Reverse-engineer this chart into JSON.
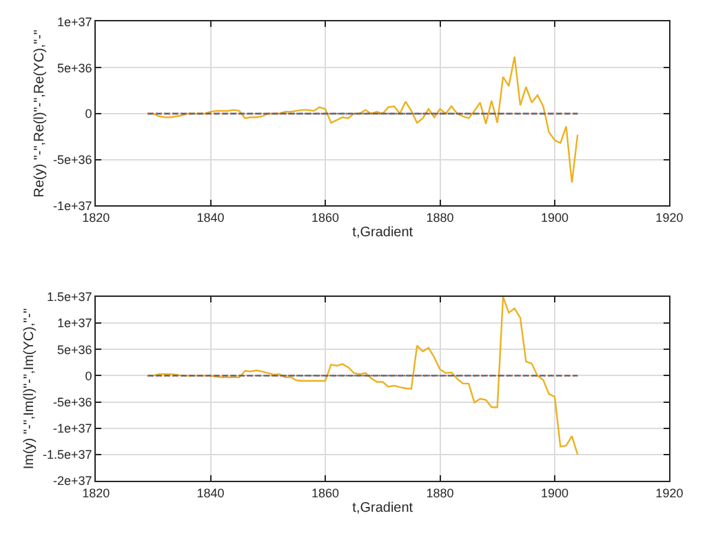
{
  "chart_data": [
    {
      "type": "line",
      "xlabel": "t,Gradient",
      "ylabel": "Re(y) \"-\",Re(l)\"-\",Re(YC),\"-\"",
      "xlim": [
        1820,
        1920
      ],
      "xticks": [
        1820,
        1840,
        1860,
        1880,
        1900,
        1920
      ],
      "ylim": [
        -1e+37,
        1e+37
      ],
      "yticks": [
        {
          "value": -1e+37,
          "label": "-1e+37"
        },
        {
          "value": -5e+36,
          "label": "-5e+36"
        },
        0,
        {
          "value": 5e+36,
          "label": "5e+36"
        },
        {
          "value": 1e+37,
          "label": "1e+37"
        }
      ],
      "grid": true,
      "x": [
        1829,
        1830,
        1831,
        1832,
        1833,
        1834,
        1835,
        1836,
        1837,
        1838,
        1839,
        1840,
        1841,
        1842,
        1843,
        1844,
        1845,
        1846,
        1847,
        1848,
        1849,
        1850,
        1851,
        1852,
        1853,
        1854,
        1855,
        1856,
        1857,
        1858,
        1859,
        1860,
        1861,
        1862,
        1863,
        1864,
        1865,
        1866,
        1867,
        1868,
        1869,
        1870,
        1871,
        1872,
        1873,
        1874,
        1875,
        1876,
        1877,
        1878,
        1879,
        1880,
        1881,
        1882,
        1883,
        1884,
        1885,
        1886,
        1887,
        1888,
        1889,
        1890,
        1891,
        1892,
        1893,
        1894,
        1895,
        1896,
        1897,
        1898,
        1899,
        1900,
        1901,
        1902,
        1903,
        1904
      ],
      "series": [
        {
          "color": "#edb120",
          "line_style": "solid",
          "values": [
            0,
            0,
            -3e+35,
            -4e+35,
            -4e+35,
            -3e+35,
            -2e+35,
            0,
            0,
            0,
            0,
            2e+35,
            3e+35,
            3e+35,
            3e+35,
            4e+35,
            3e+35,
            -5e+35,
            -4e+35,
            -4e+35,
            -3e+35,
            0,
            0,
            0,
            2e+35,
            2e+35,
            3e+35,
            4e+35,
            4e+35,
            3e+35,
            7e+35,
            5e+35,
            -1e+36,
            -7e+35,
            -4e+35,
            -5e+35,
            0,
            0,
            4e+35,
            0,
            2e+35,
            0,
            7e+35,
            8e+35,
            0,
            1.3e+36,
            3e+35,
            -1e+36,
            -5e+35,
            5e+35,
            -4e+35,
            5e+35,
            0,
            8e+35,
            0,
            -3e+35,
            -5e+35,
            3e+35,
            1.2e+36,
            -1.1e+36,
            1.4e+36,
            -1e+36,
            4e+36,
            3e+36,
            6.2e+36,
            9e+35,
            2.9e+36,
            1.2e+36,
            2e+36,
            8e+35,
            -2e+36,
            -2.9e+36,
            -3.2e+36,
            -1.4e+36,
            -7.5e+36,
            -2.3e+36
          ]
        },
        {
          "color": "#0072bd",
          "line_style": "dashed",
          "values": [
            0,
            0,
            0,
            0,
            0,
            0,
            0,
            0,
            0,
            0,
            0,
            0,
            0,
            0,
            0,
            0,
            0,
            0,
            0,
            0,
            0,
            0,
            0,
            0,
            0,
            0,
            0,
            0,
            0,
            0,
            0,
            0,
            0,
            0,
            0,
            0,
            0,
            0,
            0,
            0,
            0,
            0,
            0,
            0,
            0,
            0,
            0,
            0,
            0,
            0,
            0,
            0,
            0,
            0,
            0,
            0,
            0,
            0,
            0,
            0,
            0,
            0,
            0,
            0,
            0,
            0,
            0,
            0,
            0,
            0,
            0,
            0,
            0,
            0,
            0,
            0
          ]
        },
        {
          "color": "#d95319",
          "line_style": "dotted",
          "values": [
            0,
            0,
            0,
            0,
            0,
            0,
            0,
            0,
            0,
            0,
            0,
            0,
            0,
            0,
            0,
            0,
            0,
            0,
            0,
            0,
            0,
            0,
            0,
            0,
            0,
            0,
            0,
            0,
            0,
            0,
            0,
            0,
            0,
            0,
            0,
            0,
            0,
            0,
            0,
            0,
            0,
            0,
            0,
            0,
            0,
            0,
            0,
            0,
            0,
            0,
            0,
            0,
            0,
            0,
            0,
            0,
            0,
            0,
            0,
            0,
            0,
            0,
            0,
            0,
            0,
            0,
            0,
            0,
            0,
            0,
            0,
            0,
            0,
            0,
            0,
            0
          ]
        }
      ]
    },
    {
      "type": "line",
      "xlabel": "t,Gradient",
      "ylabel": "Im(y) \"-\",Im(l)\"-\",Im(YC),\"-\"",
      "xlim": [
        1820,
        1920
      ],
      "xticks": [
        1820,
        1840,
        1860,
        1880,
        1900,
        1920
      ],
      "ylim": [
        -2e+37,
        1.5e+37
      ],
      "yticks": [
        {
          "value": -2e+37,
          "label": "-2e+37"
        },
        {
          "value": -1.5e+37,
          "label": "-1.5e+37"
        },
        {
          "value": -1e+37,
          "label": "-1e+37"
        },
        {
          "value": -5e+36,
          "label": "-5e+36"
        },
        0,
        {
          "value": 5e+36,
          "label": "5e+36"
        },
        {
          "value": 1e+37,
          "label": "1e+37"
        },
        {
          "value": 1.5e+37,
          "label": "1.5e+37"
        }
      ],
      "grid": true,
      "x": [
        1829,
        1830,
        1831,
        1832,
        1833,
        1834,
        1835,
        1836,
        1837,
        1838,
        1839,
        1840,
        1841,
        1842,
        1843,
        1844,
        1845,
        1846,
        1847,
        1848,
        1849,
        1850,
        1851,
        1852,
        1853,
        1854,
        1855,
        1856,
        1857,
        1858,
        1859,
        1860,
        1861,
        1862,
        1863,
        1864,
        1865,
        1866,
        1867,
        1868,
        1869,
        1870,
        1871,
        1872,
        1873,
        1874,
        1875,
        1876,
        1877,
        1878,
        1879,
        1880,
        1881,
        1882,
        1883,
        1884,
        1885,
        1886,
        1887,
        1888,
        1889,
        1890,
        1891,
        1892,
        1893,
        1894,
        1895,
        1896,
        1897,
        1898,
        1899,
        1900,
        1901,
        1902,
        1903,
        1904
      ],
      "series": [
        {
          "color": "#edb120",
          "line_style": "solid",
          "values": [
            0,
            0,
            3e+35,
            3e+35,
            3e+35,
            2e+35,
            0,
            0,
            0,
            0,
            0,
            0,
            -2e+35,
            -3e+35,
            -3e+35,
            -3e+35,
            -3e+35,
            9e+35,
            8e+35,
            1e+36,
            8e+35,
            5e+35,
            2e+35,
            3e+35,
            -3e+35,
            -3e+35,
            -9e+35,
            -1e+36,
            -1e+36,
            -1e+36,
            -1e+36,
            -1e+36,
            2.1e+36,
            1.9e+36,
            2.2e+36,
            1.6e+36,
            5e+35,
            3e+35,
            5e+35,
            -5e+35,
            -1.2e+36,
            -1.2e+36,
            -2.1e+36,
            -1.9e+36,
            -2.2e+36,
            -2.4e+36,
            -2.5e+36,
            5.7e+36,
            4.6e+36,
            5.3e+36,
            3.5e+36,
            1.2e+36,
            5e+35,
            6e+35,
            -6e+35,
            -1.5e+36,
            -1.5e+36,
            -5.1e+36,
            -4.4e+36,
            -4.6e+36,
            -6e+36,
            -6e+36,
            1.5e+37,
            1.2e+37,
            1.28e+37,
            1.1e+37,
            2.7e+36,
            2.3e+36,
            0,
            -8e+35,
            -3.5e+36,
            -4e+36,
            -1.35e+37,
            -1.33e+37,
            -1.15e+37,
            -1.5e+37
          ]
        },
        {
          "color": "#0072bd",
          "line_style": "dashed",
          "values": [
            0,
            0,
            0,
            0,
            0,
            0,
            0,
            0,
            0,
            0,
            0,
            0,
            0,
            0,
            0,
            0,
            0,
            0,
            0,
            0,
            0,
            0,
            0,
            0,
            0,
            0,
            0,
            0,
            0,
            0,
            0,
            0,
            0,
            0,
            0,
            0,
            0,
            0,
            0,
            0,
            0,
            0,
            0,
            0,
            0,
            0,
            0,
            0,
            0,
            0,
            0,
            0,
            0,
            0,
            0,
            0,
            0,
            0,
            0,
            0,
            0,
            0,
            0,
            0,
            0,
            0,
            0,
            0,
            0,
            0,
            0,
            0,
            0,
            0,
            0,
            0
          ]
        },
        {
          "color": "#d95319",
          "line_style": "dotted",
          "values": [
            0,
            0,
            0,
            0,
            0,
            0,
            0,
            0,
            0,
            0,
            0,
            0,
            0,
            0,
            0,
            0,
            0,
            0,
            0,
            0,
            0,
            0,
            0,
            0,
            0,
            0,
            0,
            0,
            0,
            0,
            0,
            0,
            0,
            0,
            0,
            0,
            0,
            0,
            0,
            0,
            0,
            0,
            0,
            0,
            0,
            0,
            0,
            0,
            0,
            0,
            0,
            0,
            0,
            0,
            0,
            0,
            0,
            0,
            0,
            0,
            0,
            0,
            0,
            0,
            0,
            0,
            0,
            0,
            0,
            0,
            0,
            0,
            0,
            0,
            0,
            0
          ]
        }
      ]
    }
  ]
}
